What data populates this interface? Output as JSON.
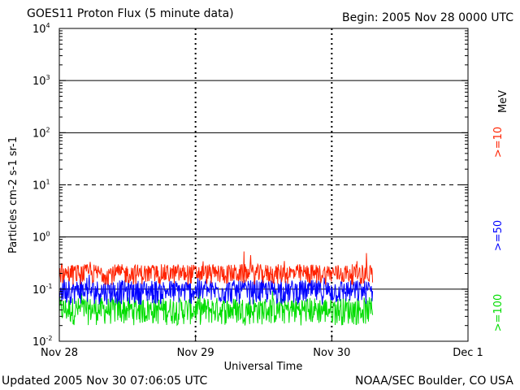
{
  "header": {
    "title": "GOES11 Proton Flux (5 minute data)",
    "begin": "Begin: 2005 Nov 28 0000 UTC"
  },
  "footer": {
    "updated": "Updated 2005 Nov 30 07:06:05 UTC",
    "credit": "NOAA/SEC Boulder, CO USA"
  },
  "chart_data": {
    "type": "line",
    "title": "GOES11 Proton Flux (5 minute data)",
    "xlabel": "Universal Time",
    "ylabel": "Particles cm-2 s-1 sr-1",
    "yscale": "log",
    "ylim": [
      0.01,
      10000
    ],
    "xlim_days": [
      0,
      3.0
    ],
    "x_ticks": [
      "Nov 28",
      "Nov 29",
      "Nov 30",
      "Dec 1"
    ],
    "y_ticks": [
      {
        "base": "10",
        "exp": "-2",
        "value": 0.01
      },
      {
        "base": "10",
        "exp": "-1",
        "value": 0.1
      },
      {
        "base": "10",
        "exp": "0",
        "value": 1
      },
      {
        "base": "10",
        "exp": "1",
        "value": 10
      },
      {
        "base": "10",
        "exp": "2",
        "value": 100
      },
      {
        "base": "10",
        "exp": "3",
        "value": 1000
      },
      {
        "base": "10",
        "exp": "4",
        "value": 10000
      }
    ],
    "gridlines": {
      "solid": [
        0.1,
        1,
        100,
        1000
      ],
      "dashed": [
        10
      ]
    },
    "data_end_day": 2.3,
    "legend_position": "right",
    "series": [
      {
        "name": ">=10",
        "color": "#ff2200",
        "typical_low": 0.12,
        "typical_high": 0.3,
        "peak": 0.6
      },
      {
        "name": ">=50",
        "color": "#0000ff",
        "typical_low": 0.05,
        "typical_high": 0.15,
        "peak": 0.2
      },
      {
        "name": ">=100",
        "color": "#00dd00",
        "typical_low": 0.02,
        "typical_high": 0.07,
        "peak": 0.1
      }
    ],
    "legend_unit": "MeV"
  }
}
